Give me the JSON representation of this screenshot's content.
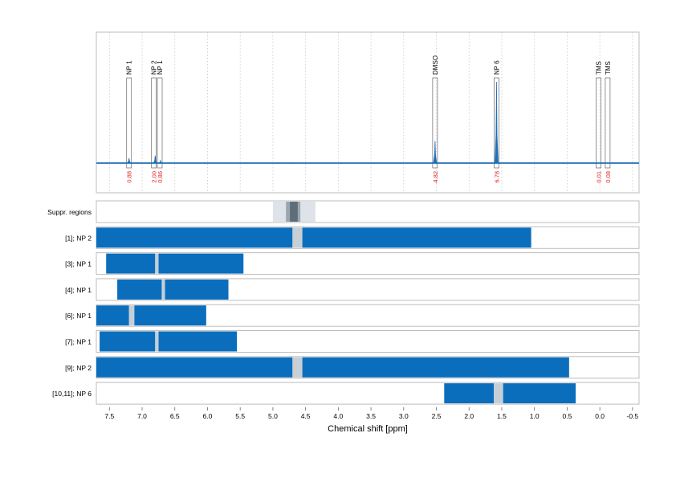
{
  "chart_data": {
    "type": "nmr_spectrum_with_range_bars",
    "xlabel": "Chemical shift [ppm]",
    "xlim": [
      7.7,
      -0.6
    ],
    "xaxis_reversed": true,
    "x_ticks": [
      "7.5",
      "7.0",
      "6.5",
      "6.0",
      "5.5",
      "5.0",
      "4.5",
      "4.0",
      "3.5",
      "3.0",
      "2.5",
      "2.0",
      "1.5",
      "1.0",
      "0.5",
      "0.0",
      "-0.5"
    ],
    "x_tick_values": [
      7.5,
      7.0,
      6.5,
      6.0,
      5.5,
      5.0,
      4.5,
      4.0,
      3.5,
      3.0,
      2.5,
      2.0,
      1.5,
      1.0,
      0.5,
      0.0,
      -0.5
    ],
    "grid": "vertical dotted",
    "colors": {
      "signal": "#1f6fba",
      "bar": "#0a6ebd",
      "gap": "#c6cfd6",
      "peak_number": "#e02020",
      "frame": "#bdbdbd",
      "suppr_light": "#dde3e8",
      "suppr_mid": "#9aa6b1",
      "suppr_dark": "#5e6d7a"
    },
    "spectrum": {
      "peaks": [
        {
          "ppm": 7.2,
          "height": 0.06
        },
        {
          "ppm": 6.8,
          "height": 0.09
        },
        {
          "ppm": 6.72,
          "height": 0.03
        },
        {
          "ppm": 2.52,
          "height": 0.27
        },
        {
          "ppm": 1.58,
          "height": 0.99
        },
        {
          "ppm": 4.7,
          "height": 0.005
        }
      ],
      "annotations": [
        {
          "label": "NP 1",
          "ppm": 7.2,
          "value": "0.88"
        },
        {
          "label": "NP 2",
          "ppm": 6.82,
          "value": "2.00"
        },
        {
          "label": "NP 1",
          "ppm": 6.73,
          "value": "0.86"
        },
        {
          "label": "DMSO",
          "ppm": 2.52,
          "value": "4.82"
        },
        {
          "label": "NP 6",
          "ppm": 1.58,
          "value": "6.78"
        },
        {
          "label": "TMS",
          "ppm": 0.02,
          "value": "0.01"
        },
        {
          "label": "TMS",
          "ppm": -0.12,
          "value": "0.08"
        }
      ]
    },
    "suppression": {
      "label": "Suppr. regions",
      "outer": [
        5.0,
        4.35
      ],
      "mid": [
        4.8,
        4.58
      ],
      "inner": [
        4.74,
        4.62
      ]
    },
    "rows": [
      {
        "label": "[1]; NP 2",
        "bars": [
          [
            7.7,
            4.7
          ],
          [
            4.55,
            1.05
          ]
        ],
        "gap": [
          4.7,
          4.55
        ]
      },
      {
        "label": "[3]; NP 1",
        "bars": [
          [
            7.55,
            6.8
          ],
          [
            6.75,
            5.45
          ]
        ],
        "gap": [
          6.8,
          6.75
        ]
      },
      {
        "label": "[4]; NP 1",
        "bars": [
          [
            7.38,
            6.7
          ],
          [
            6.65,
            5.68
          ]
        ],
        "gap": [
          6.7,
          6.65
        ]
      },
      {
        "label": "[6]; NP 1",
        "bars": [
          [
            7.7,
            7.2
          ],
          [
            7.12,
            6.02
          ]
        ],
        "gap": [
          7.2,
          7.12
        ]
      },
      {
        "label": "[7]; NP 1",
        "bars": [
          [
            7.65,
            6.8
          ],
          [
            6.75,
            5.55
          ]
        ],
        "gap": [
          6.8,
          6.75
        ]
      },
      {
        "label": "[9]; NP 2",
        "bars": [
          [
            7.7,
            4.7
          ],
          [
            4.55,
            0.47
          ]
        ],
        "gap": [
          4.7,
          4.55
        ]
      },
      {
        "label": "[10,11]; NP 6",
        "bars": [
          [
            2.38,
            1.62
          ],
          [
            1.48,
            0.37
          ]
        ],
        "gap": [
          1.62,
          1.48
        ]
      }
    ]
  }
}
